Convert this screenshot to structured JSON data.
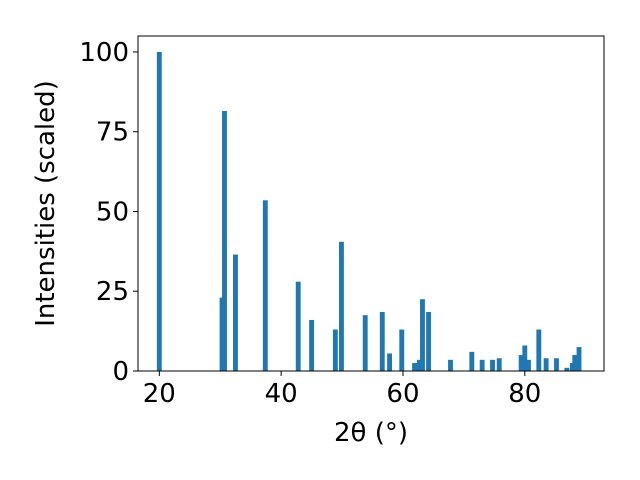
{
  "chart_data": {
    "type": "bar",
    "xlabel": "2θ (°)",
    "ylabel": "Intensities (scaled)",
    "xlim": [
      16.5,
      93
    ],
    "ylim": [
      0,
      105
    ],
    "xticks": [
      20,
      40,
      60,
      80
    ],
    "yticks": [
      0,
      25,
      50,
      75,
      100
    ],
    "grid": false,
    "color": "#1f77b4",
    "bar_width": 0.8,
    "x": [
      20.0,
      30.3,
      30.7,
      32.5,
      37.4,
      42.8,
      45.0,
      48.9,
      49.9,
      53.8,
      56.6,
      57.8,
      59.8,
      61.9,
      62.7,
      63.2,
      64.2,
      67.8,
      71.3,
      73.0,
      74.7,
      75.8,
      79.4,
      80.0,
      80.6,
      82.3,
      83.5,
      85.2,
      86.9,
      87.8,
      88.2,
      88.9
    ],
    "values": [
      100,
      23,
      81.5,
      36.5,
      53.5,
      28,
      16,
      13,
      40.5,
      17.5,
      18.5,
      5.5,
      13,
      2.5,
      3.5,
      22.5,
      18.5,
      3.5,
      6,
      3.5,
      3.5,
      4,
      5,
      8,
      3.5,
      13,
      4,
      4,
      1,
      2.5,
      5,
      7.5
    ]
  }
}
